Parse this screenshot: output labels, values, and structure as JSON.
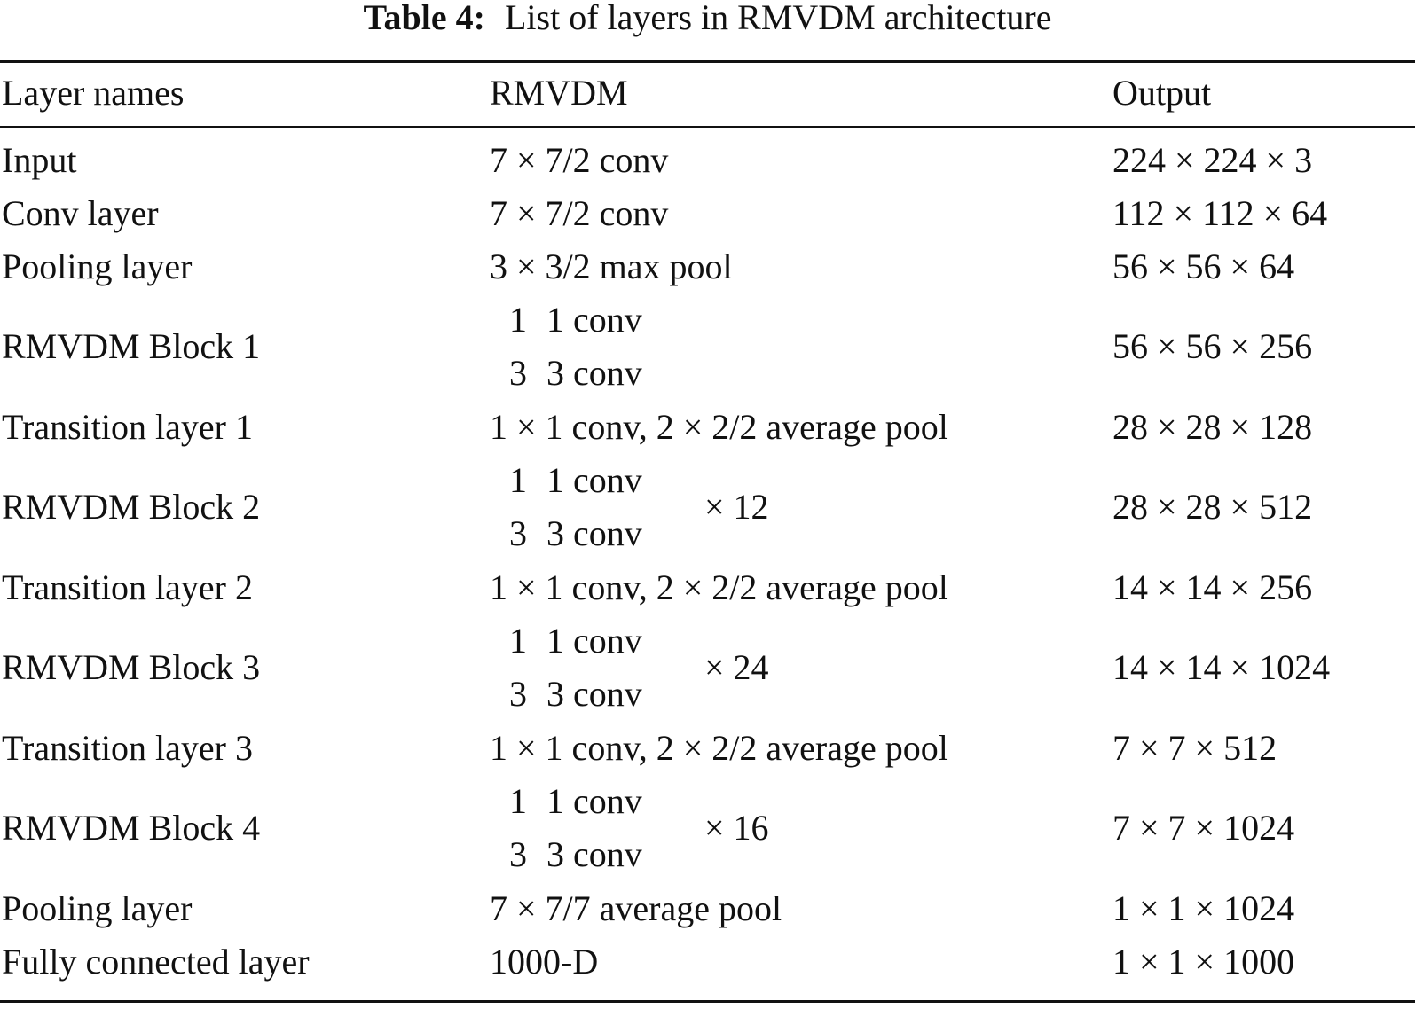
{
  "caption": {
    "label": "Table 4:",
    "text": "List of layers in RMVDM architecture"
  },
  "headers": [
    "Layer names",
    "RMVDM",
    "Output"
  ],
  "rows": [
    {
      "name": "Input",
      "rmvdm": "7 × 7/2 conv",
      "output": "224 × 224 × 3"
    },
    {
      "name": "Conv layer",
      "rmvdm": "7 × 7/2 conv",
      "output": "112 × 112 × 64"
    },
    {
      "name": "Pooling layer",
      "rmvdm": "3 × 3/2 max pool",
      "output": "56 × 56 × 64"
    },
    {
      "name": "RMVDM Block 1",
      "block": {
        "line1": [
          "1",
          "1 conv"
        ],
        "line2": [
          "3",
          "3 conv"
        ],
        "mult": ""
      },
      "output": "56 × 56 × 256"
    },
    {
      "name": "Transition layer 1",
      "rmvdm": "1 × 1 conv, 2 × 2/2 average pool",
      "output": "28 × 28 × 128"
    },
    {
      "name": "RMVDM Block 2",
      "block": {
        "line1": [
          "1",
          "1 conv"
        ],
        "line2": [
          "3",
          "3 conv"
        ],
        "mult": "× 12"
      },
      "output": "28 × 28 × 512"
    },
    {
      "name": "Transition layer 2",
      "rmvdm": "1 × 1 conv, 2 × 2/2 average pool",
      "output": "14 × 14 × 256"
    },
    {
      "name": "RMVDM Block 3",
      "block": {
        "line1": [
          "1",
          "1 conv"
        ],
        "line2": [
          "3",
          "3 conv"
        ],
        "mult": "× 24"
      },
      "output": "14 × 14 × 1024"
    },
    {
      "name": "Transition layer 3",
      "rmvdm": "1 × 1 conv, 2 × 2/2 average pool",
      "output": "7 × 7 × 512"
    },
    {
      "name": "RMVDM Block 4",
      "block": {
        "line1": [
          "1",
          "1 conv"
        ],
        "line2": [
          "3",
          "3 conv"
        ],
        "mult": "× 16"
      },
      "output": "7 × 7 × 1024"
    },
    {
      "name": "Pooling layer",
      "rmvdm": "7 × 7/7 average pool",
      "output": "1 × 1 × 1024"
    },
    {
      "name": "Fully connected layer",
      "rmvdm": "1000-D",
      "output": "1 × 1 × 1000"
    }
  ]
}
